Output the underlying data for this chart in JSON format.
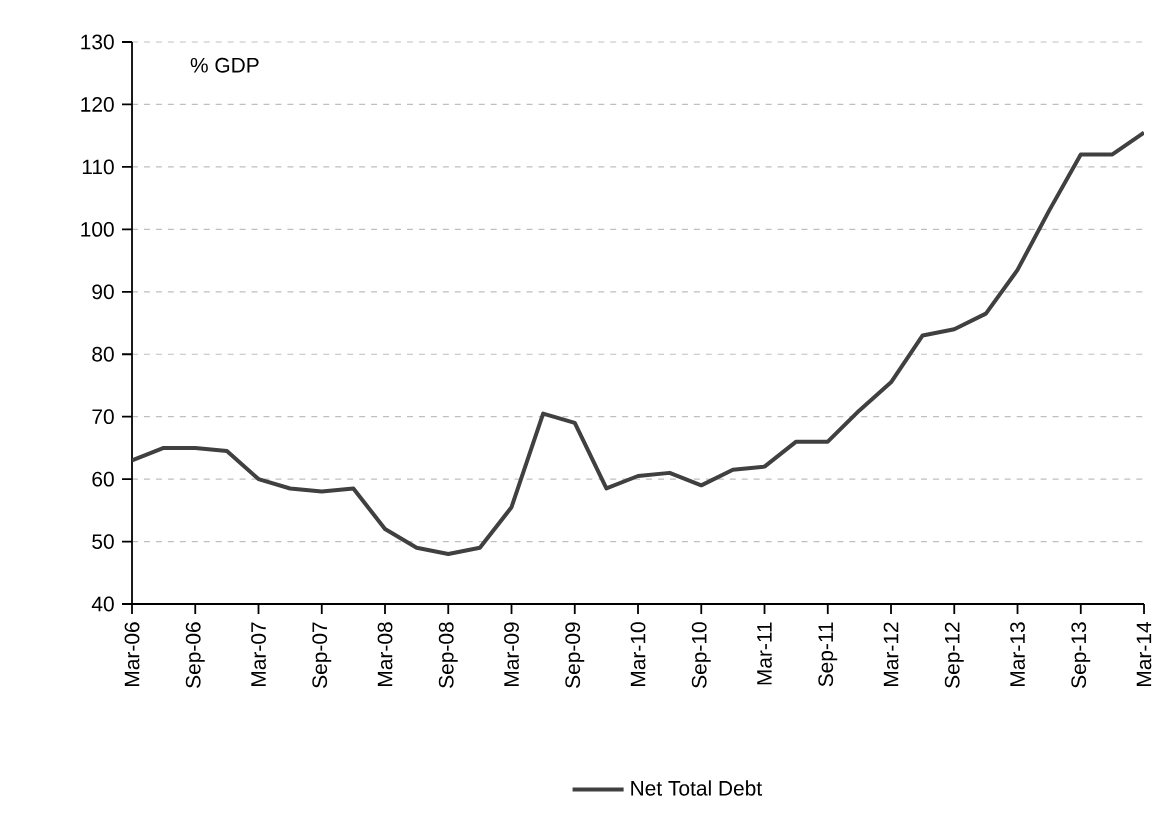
{
  "chart_data": {
    "type": "line",
    "ylabel": "% GDP",
    "categories": [
      "Mar-06",
      null,
      "Sep-06",
      null,
      "Mar-07",
      null,
      "Sep-07",
      null,
      "Mar-08",
      null,
      "Sep-08",
      null,
      "Mar-09",
      null,
      "Sep-09",
      null,
      "Mar-10",
      null,
      "Sep-10",
      null,
      "Mar-11",
      null,
      "Sep-11",
      null,
      "Mar-12",
      null,
      "Sep-12",
      null,
      "Mar-13",
      null,
      "Sep-13",
      null,
      "Mar-14"
    ],
    "series": [
      {
        "name": "Net Total Debt",
        "color": "#404040",
        "values": [
          63,
          65,
          65,
          64.5,
          60,
          58.5,
          58,
          58.5,
          52,
          49,
          48,
          49,
          55.5,
          70.5,
          69,
          58.5,
          60.5,
          61,
          59,
          61.5,
          62,
          66,
          66,
          71,
          75.5,
          83,
          84,
          86.5,
          93.5,
          103,
          112,
          112,
          115.5
        ]
      }
    ],
    "ylim": [
      40,
      130
    ],
    "yticks": [
      40,
      50,
      60,
      70,
      80,
      90,
      100,
      110,
      120,
      130
    ],
    "grid": "y",
    "legend": "bottom",
    "marker": "none",
    "line_style": "solid"
  }
}
